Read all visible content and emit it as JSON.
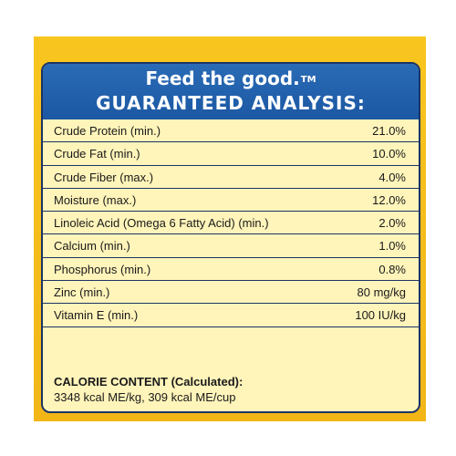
{
  "header": {
    "tagline": "Feed the good.",
    "trademark": "TM",
    "title": "GUARANTEED ANALYSIS:"
  },
  "analysis": [
    {
      "name": "Crude Protein (min.)",
      "value": "21.0%"
    },
    {
      "name": "Crude Fat (min.)",
      "value": "10.0%"
    },
    {
      "name": "Crude Fiber (max.)",
      "value": "4.0%"
    },
    {
      "name": "Moisture (max.)",
      "value": "12.0%"
    },
    {
      "name": "Linoleic Acid (Omega 6 Fatty Acid) (min.)",
      "value": "2.0%"
    },
    {
      "name": "Calcium (min.)",
      "value": "1.0%"
    },
    {
      "name": "Phosphorus (min.)",
      "value": "0.8%"
    },
    {
      "name": "Zinc (min.)",
      "value": "80 mg/kg"
    },
    {
      "name": "Vitamin E (min.)",
      "value": "100 IU/kg"
    }
  ],
  "calorie": {
    "title": "CALORIE CONTENT",
    "title_suffix": "(Calculated):",
    "value": "3348 kcal ME/kg, 309 kcal ME/cup"
  },
  "colors": {
    "background": "#f6bf1d",
    "header": "#1f5da8",
    "label": "#fff4ba",
    "border": "#1b3466"
  }
}
